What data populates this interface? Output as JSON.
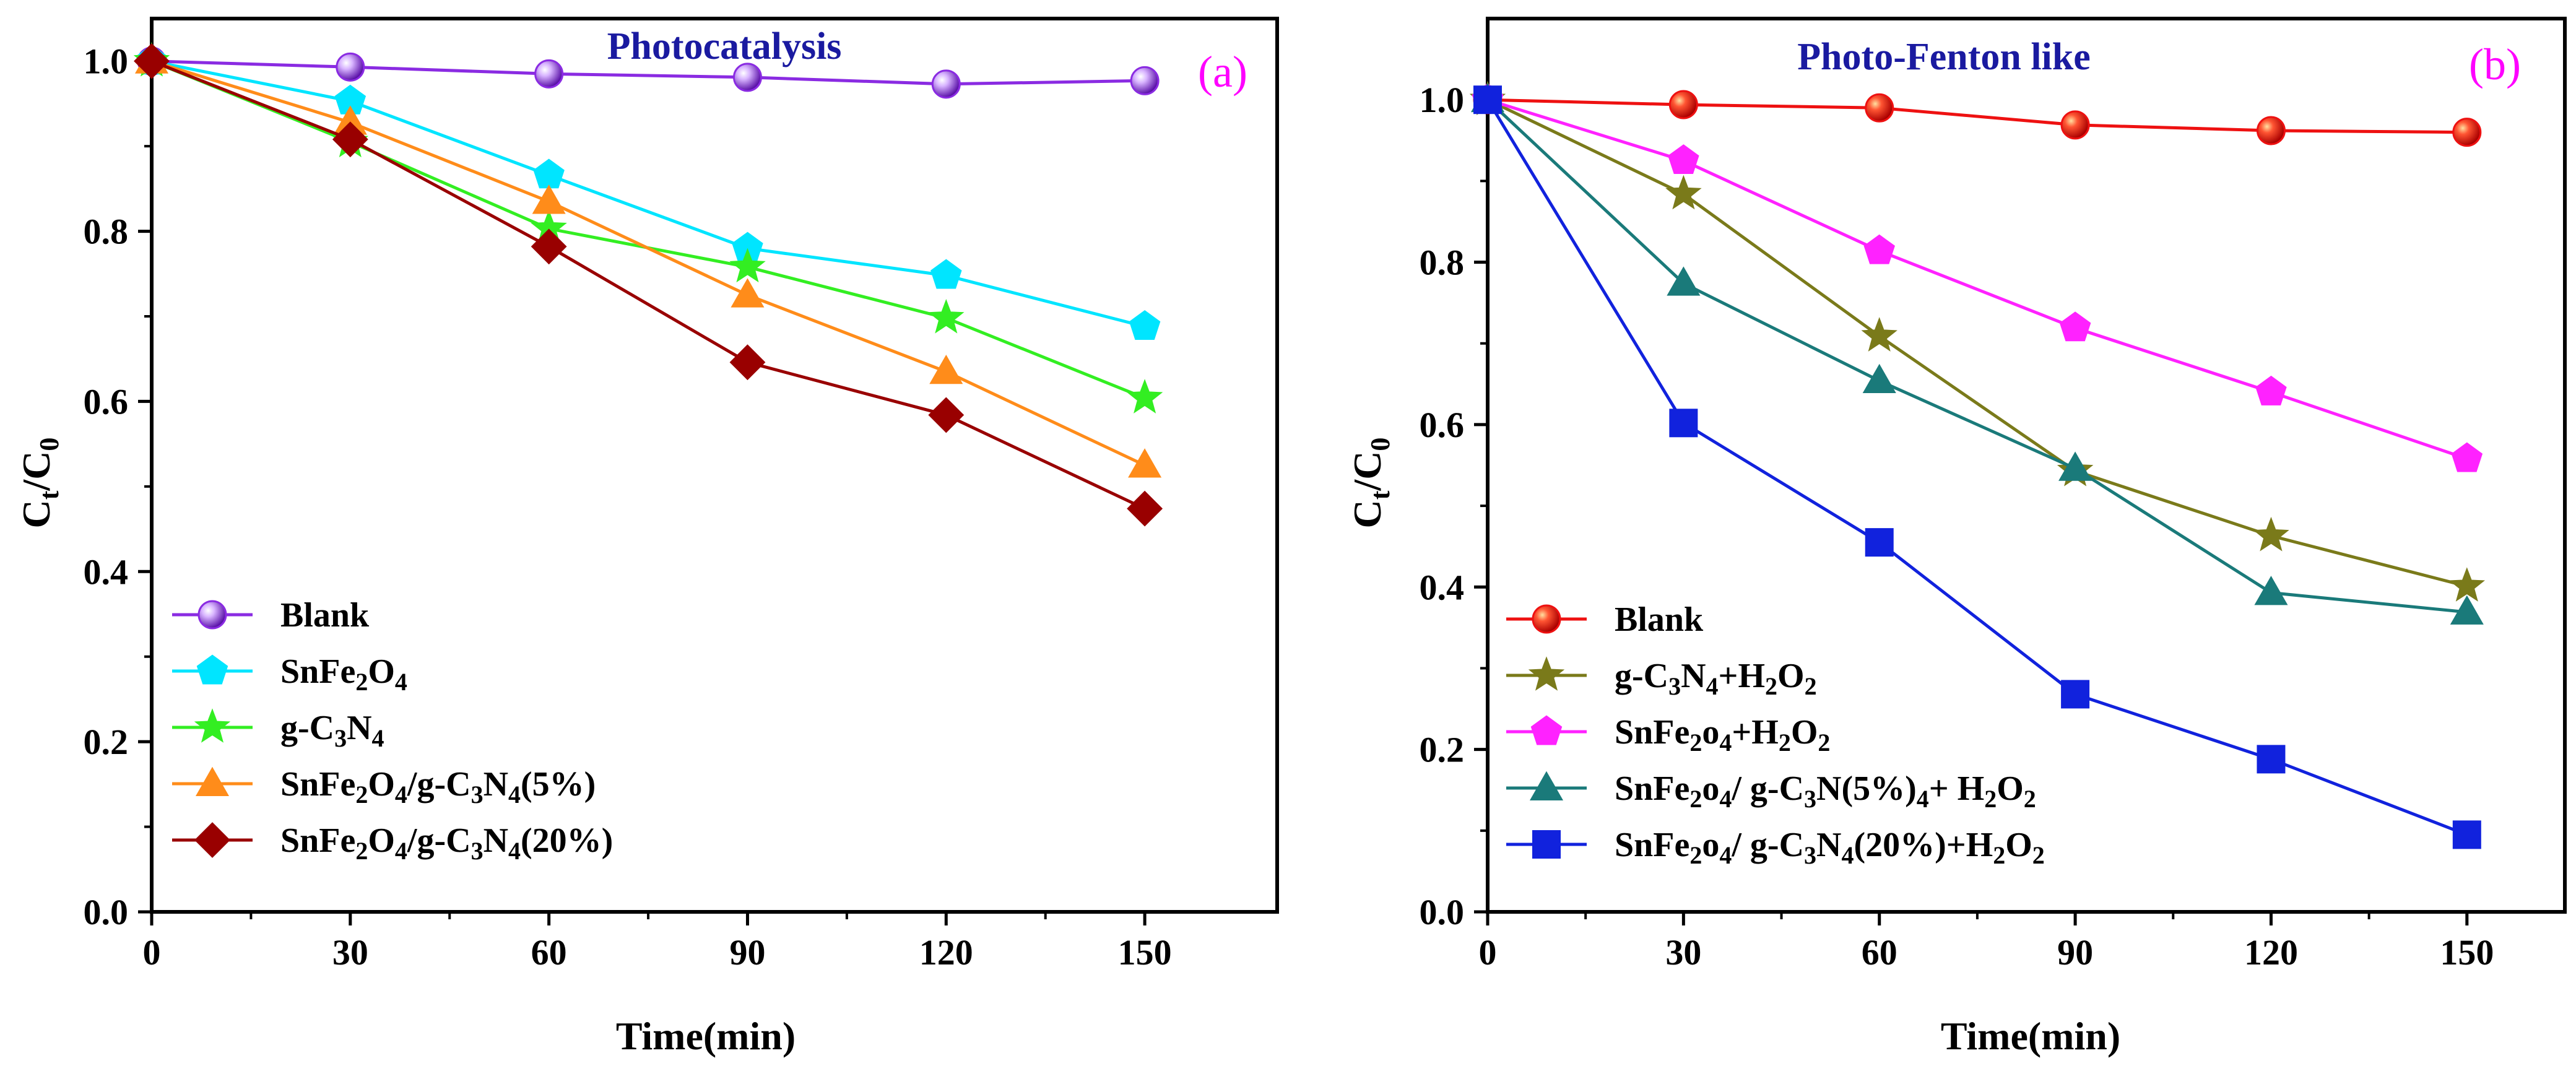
{
  "chart_data": [
    {
      "type": "line",
      "title": "Photocatalysis",
      "panel_label": "(a)",
      "xlabel": "Time(min)",
      "ylabel_main": "C",
      "ylabel_sub1": "t",
      "ylabel_mid": "/C",
      "ylabel_sub2": "0",
      "xlim": [
        0,
        170
      ],
      "ylim": [
        0.0,
        1.05
      ],
      "x_ticks": [
        0,
        30,
        60,
        90,
        120,
        150
      ],
      "x_tick_labels": [
        "0",
        "30",
        "60",
        "90",
        "120",
        "150"
      ],
      "y_ticks": [
        0.0,
        0.2,
        0.4,
        0.6,
        0.8,
        1.0
      ],
      "y_tick_labels": [
        "0.0",
        "0.2",
        "0.4",
        "0.6",
        "0.8",
        "1.0"
      ],
      "legend_position": "bottom-left",
      "x": [
        0,
        30,
        60,
        90,
        120,
        150
      ],
      "series": [
        {
          "name": "Blank",
          "label_parts": [
            [
              "Blank",
              ""
            ]
          ],
          "color": "#8a2be2",
          "marker": "sphere",
          "values": [
            1.0,
            0.993,
            0.985,
            0.981,
            0.973,
            0.977
          ]
        },
        {
          "name": "SnFe2O4",
          "label_parts": [
            [
              "SnFe",
              ""
            ],
            [
              "2",
              "sub"
            ],
            [
              "O",
              ""
            ],
            [
              "4",
              "sub"
            ]
          ],
          "color": "#00e5ff",
          "marker": "pentagon",
          "values": [
            1.0,
            0.953,
            0.866,
            0.78,
            0.748,
            0.688
          ]
        },
        {
          "name": "g-C3N4",
          "label_parts": [
            [
              "g-C",
              ""
            ],
            [
              "3",
              "sub"
            ],
            [
              "N",
              ""
            ],
            [
              "4",
              "sub"
            ]
          ],
          "color": "#33ee22",
          "marker": "star",
          "values": [
            1.0,
            0.905,
            0.803,
            0.758,
            0.698,
            0.604
          ]
        },
        {
          "name": "SnFe2O4/g-C3N4(5%)",
          "label_parts": [
            [
              "SnFe",
              ""
            ],
            [
              "2",
              "sub"
            ],
            [
              "O",
              ""
            ],
            [
              "4",
              "sub"
            ],
            [
              "/g-C",
              ""
            ],
            [
              "3",
              "sub"
            ],
            [
              "N",
              ""
            ],
            [
              "4",
              "sub"
            ],
            [
              "(5%)",
              ""
            ]
          ],
          "color": "#ff8c1a",
          "marker": "triangle",
          "values": [
            1.0,
            0.928,
            0.835,
            0.725,
            0.635,
            0.525
          ]
        },
        {
          "name": "SnFe2O4/g-C3N4(20%)",
          "label_parts": [
            [
              "SnFe",
              ""
            ],
            [
              "2",
              "sub"
            ],
            [
              "O",
              ""
            ],
            [
              "4",
              "sub"
            ],
            [
              "/g-C",
              ""
            ],
            [
              "3",
              "sub"
            ],
            [
              "N",
              ""
            ],
            [
              "4",
              "sub"
            ],
            [
              "(20%)",
              ""
            ]
          ],
          "color": "#990000",
          "marker": "diamond",
          "values": [
            1.0,
            0.908,
            0.782,
            0.646,
            0.584,
            0.474
          ]
        }
      ]
    },
    {
      "type": "line",
      "title": "Photo-Fenton like",
      "panel_label": "(b)",
      "xlabel": "Time(min)",
      "ylabel_main": "C",
      "ylabel_sub1": "t",
      "ylabel_mid": "/C",
      "ylabel_sub2": "0",
      "xlim": [
        0,
        165
      ],
      "ylim": [
        0.0,
        1.1
      ],
      "x_ticks": [
        0,
        30,
        60,
        90,
        120,
        150
      ],
      "x_tick_labels": [
        "0",
        "30",
        "60",
        "90",
        "120",
        "150"
      ],
      "y_ticks": [
        0.0,
        0.2,
        0.4,
        0.6,
        0.8,
        1.0
      ],
      "y_tick_labels": [
        "0.0",
        "0.2",
        "0.4",
        "0.6",
        "0.8",
        "1.0"
      ],
      "legend_position": "bottom-left",
      "x": [
        0,
        30,
        60,
        90,
        120,
        150
      ],
      "series": [
        {
          "name": "Blank",
          "label_parts": [
            [
              "Blank",
              ""
            ]
          ],
          "color": "#ee1111",
          "marker": "sphere",
          "values": [
            1.0,
            0.994,
            0.99,
            0.969,
            0.962,
            0.96
          ]
        },
        {
          "name": "g-C3N4+H2O2",
          "label_parts": [
            [
              "g-C",
              ""
            ],
            [
              "3",
              "sub"
            ],
            [
              "N",
              ""
            ],
            [
              "4",
              "sub"
            ],
            [
              "+H",
              ""
            ],
            [
              "2",
              "sub"
            ],
            [
              "O",
              ""
            ],
            [
              "2",
              "sub"
            ]
          ],
          "color": "#7a7a1a",
          "marker": "star",
          "values": [
            1.0,
            0.884,
            0.709,
            0.543,
            0.463,
            0.401
          ]
        },
        {
          "name": "SnFe2o4+H2O2",
          "label_parts": [
            [
              "SnFe",
              ""
            ],
            [
              "2",
              "sub"
            ],
            [
              "o",
              ""
            ],
            [
              "4",
              "sub"
            ],
            [
              "+H",
              ""
            ],
            [
              "2",
              "sub"
            ],
            [
              "O",
              ""
            ],
            [
              "2",
              "sub"
            ]
          ],
          "color": "#ff22ff",
          "marker": "pentagon",
          "values": [
            1.0,
            0.925,
            0.814,
            0.719,
            0.64,
            0.558
          ]
        },
        {
          "name": "SnFe2o4/ g-C3N(5%)4+ H2O2",
          "label_parts": [
            [
              "SnFe",
              ""
            ],
            [
              "2",
              "sub"
            ],
            [
              "o",
              ""
            ],
            [
              "4",
              "sub"
            ],
            [
              "/ g-C",
              ""
            ],
            [
              "3",
              "sub"
            ],
            [
              "N(5%)",
              ""
            ],
            [
              "4",
              "sub"
            ],
            [
              "+ H",
              ""
            ],
            [
              "2",
              "sub"
            ],
            [
              "O",
              ""
            ],
            [
              "2",
              "sub"
            ]
          ],
          "color": "#1a7a7a",
          "marker": "triangle",
          "values": [
            1.0,
            0.774,
            0.654,
            0.546,
            0.393,
            0.369
          ]
        },
        {
          "name": "SnFe2o4/ g-C3N4(20%)+H2O2",
          "label_parts": [
            [
              "SnFe",
              ""
            ],
            [
              "2",
              "sub"
            ],
            [
              "o",
              ""
            ],
            [
              "4",
              "sub"
            ],
            [
              "/ g-C",
              ""
            ],
            [
              "3",
              "sub"
            ],
            [
              "N",
              ""
            ],
            [
              "4",
              "sub"
            ],
            [
              "(20%)+H",
              ""
            ],
            [
              "2",
              "sub"
            ],
            [
              "O",
              ""
            ],
            [
              "2",
              "sub"
            ]
          ],
          "color": "#1122dd",
          "marker": "square",
          "values": [
            1.0,
            0.602,
            0.455,
            0.268,
            0.188,
            0.095
          ]
        }
      ]
    }
  ]
}
